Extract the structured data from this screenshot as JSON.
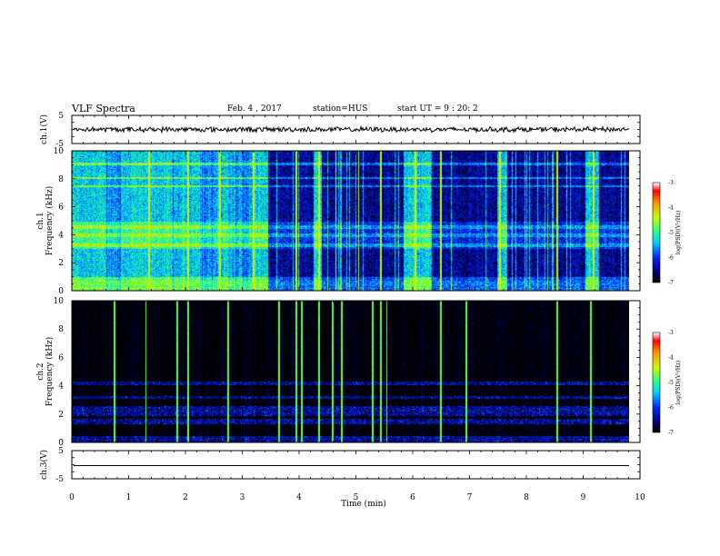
{
  "header": {
    "title": "VLF Spectra",
    "date": "Feb. 4 , 2017",
    "station": "station=HUS",
    "start": "start UT =  9 : 20: 2"
  },
  "chart_data": [
    {
      "type": "line",
      "name": "ch1-waveform",
      "ylabel": "ch.1(V)",
      "yticks": [
        "5",
        "-5"
      ],
      "ylim": [
        -5,
        5
      ],
      "xlim": [
        0,
        10
      ],
      "signal": "noise",
      "amplitude": 0.8
    },
    {
      "type": "heatmap",
      "name": "ch1-spectrogram",
      "ylabel": "ch.1 Frequency (kHz)",
      "ylabel_lines": [
        "ch.1",
        "Frequency (kHz)"
      ],
      "yticks": [
        "0",
        "2",
        "4",
        "6",
        "8",
        "10"
      ],
      "ylim": [
        0,
        10
      ],
      "xlim": [
        0,
        9.83
      ],
      "colorbar": {
        "label": "log(PSD)(V²/Hz)",
        "ticks": [
          "-3",
          "-4",
          "-5",
          "-6",
          "-7"
        ],
        "range": [
          -7,
          -3
        ]
      },
      "background_level": -6.6,
      "active_bands_min": [
        [
          0,
          0.6
        ],
        [
          0.85,
          1.75
        ],
        [
          1.9,
          2.25
        ],
        [
          2.55,
          2.75
        ],
        [
          3.2,
          3.45
        ],
        [
          4.25,
          4.4
        ],
        [
          5.85,
          6.35
        ],
        [
          7.5,
          7.65
        ],
        [
          9.05,
          9.3
        ]
      ],
      "active_level": -5.2,
      "horizontal_lines_khz": [
        0.2,
        0.45,
        0.65,
        1.2,
        1.9,
        2.4,
        3.3,
        4.0,
        4.5,
        7.5,
        8.1,
        9.1,
        9.8
      ],
      "spikes_min": [
        1.35,
        2.05,
        2.6,
        3.2,
        3.95,
        4.35,
        4.65,
        5.05,
        5.45,
        6.05,
        6.5,
        7.55,
        8.55,
        9.2
      ]
    },
    {
      "type": "heatmap",
      "name": "ch2-spectrogram",
      "ylabel": "ch.2 Frequency (kHz)",
      "ylabel_lines": [
        "ch.2",
        "Frequency (kHz)"
      ],
      "yticks": [
        "0",
        "2",
        "4",
        "6",
        "8",
        "10"
      ],
      "ylim": [
        0,
        10
      ],
      "xlim": [
        0,
        9.83
      ],
      "colorbar": {
        "label": "log(PSD)(V²/Hz)",
        "ticks": [
          "-3",
          "-4",
          "-5",
          "-6",
          "-7"
        ],
        "range": [
          -7,
          -3
        ]
      },
      "background_level": -7.0,
      "bands_khz": [
        [
          0,
          0.5
        ],
        [
          1.3,
          1.7
        ],
        [
          1.9,
          2.6
        ],
        [
          3.1,
          3.3
        ],
        [
          4.1,
          4.3
        ]
      ],
      "spikes_min": [
        0.75,
        1.3,
        1.85,
        2.05,
        2.75,
        3.65,
        3.95,
        4.05,
        4.35,
        4.6,
        4.75,
        5.3,
        5.45,
        5.55,
        6.5,
        6.95,
        8.55,
        9.15
      ]
    },
    {
      "type": "line",
      "name": "ch3-waveform",
      "ylabel": "ch.3(V)",
      "yticks": [
        "5",
        "-5"
      ],
      "ylim": [
        -5,
        5
      ],
      "xlim": [
        0,
        10
      ],
      "signal": "flat",
      "value": 0
    }
  ],
  "xaxis": {
    "label": "Time (min)",
    "ticks": [
      "0",
      "1",
      "2",
      "3",
      "4",
      "5",
      "6",
      "7",
      "8",
      "9",
      "10"
    ],
    "range": [
      0,
      10
    ]
  }
}
